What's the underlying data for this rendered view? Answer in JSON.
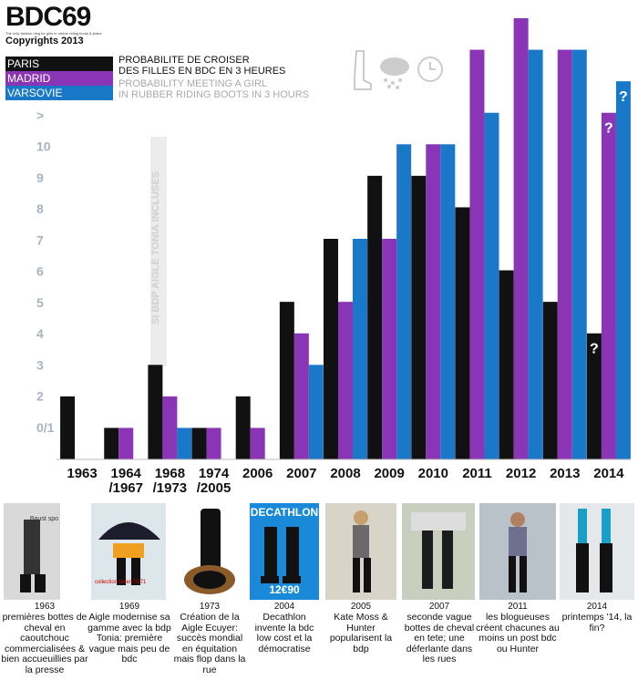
{
  "brand": {
    "logo": "BDC69",
    "tagline": "The only fashion blog for girls in rubber riding boots & jeans",
    "copyright": "Copyrights 2013"
  },
  "legend": [
    {
      "label": "PARIS",
      "color": "#111111"
    },
    {
      "label": "MADRID",
      "color": "#8a35b5"
    },
    {
      "label": "VARSOVIE",
      "color": "#1a78c9"
    }
  ],
  "subtitle": {
    "fr_line1": "PROBABILITE DE CROISER",
    "fr_line2": "DES FILLES EN BDC EN 3 HEURES",
    "en_line1": "PROBABILITY MEETING A GIRL",
    "en_line2": "IN RUBBER RIDING BOOTS IN  3 HOURS"
  },
  "icons": [
    "boot-icon",
    "snow-cloud-icon",
    "clock-icon"
  ],
  "chart_data": {
    "type": "bar",
    "categories": [
      "1963",
      "1964 /1967",
      "1968 /1973",
      "1974 /2005",
      "2006",
      "2007",
      "2008",
      "2009",
      "2010",
      "2011",
      "2012",
      "2013",
      "2014"
    ],
    "y_tick_labels": [
      "0/1",
      "2",
      "3",
      "4",
      "5",
      "6",
      "7",
      "8",
      "9",
      "10",
      ">"
    ],
    "series": [
      {
        "name": "PARIS",
        "values": [
          2,
          1,
          3,
          1,
          2,
          5,
          7,
          9,
          9,
          8,
          6,
          5,
          4
        ]
      },
      {
        "name": "MADRID",
        "values": [
          0,
          1,
          2,
          1,
          1,
          4,
          5,
          7,
          10,
          13,
          14,
          13,
          11
        ]
      },
      {
        "name": "VARSOVIE",
        "values": [
          0,
          0,
          1,
          0,
          0,
          3,
          7,
          10,
          10,
          11,
          13,
          13,
          12
        ]
      }
    ],
    "question_marks": [
      {
        "category": "2014",
        "series": "PARIS",
        "label": "?"
      },
      {
        "category": "2014",
        "series": "MADRID",
        "label": "?"
      },
      {
        "category": "2014",
        "series": "VARSOVIE",
        "label": "?"
      }
    ],
    "annotation": "SI BDP AIGLE TONIA INCLUSES",
    "ylim": [
      0,
      14
    ],
    "grid": false
  },
  "photos": [
    {
      "year": "1963",
      "caption": "premières bottes de cheval en caoutchouc commercialisées & bien accueuillies par la presse",
      "inset_text": "Baust spo"
    },
    {
      "year": "1969",
      "caption": "Aigle modernise sa gamme avec la bdp Tonia: première vague mais peu de bdc",
      "inset_text": "collection hiver 70/71"
    },
    {
      "year": "1973",
      "caption": "Création de la Aigle Ecuyer: succès mondial en équitation mais flop dans la rue",
      "inset_text": ""
    },
    {
      "year": "2004",
      "caption": "Decathlon invente la bdc low cost et la démocratise",
      "inset_text": "DECATHLON",
      "price": "12€90"
    },
    {
      "year": "2005",
      "caption": "Kate Moss & Hunter popularisent la bdp",
      "inset_text": ""
    },
    {
      "year": "2007",
      "caption": "seconde vague bottes de cheval en tete; une déferlante dans les rues",
      "inset_text": ""
    },
    {
      "year": "2011",
      "caption": "les blogueuses créent chacunes au moins un post bdc ou Hunter",
      "inset_text": ""
    },
    {
      "year": "2014",
      "caption": "printemps '14, la fin?",
      "inset_text": ""
    }
  ]
}
